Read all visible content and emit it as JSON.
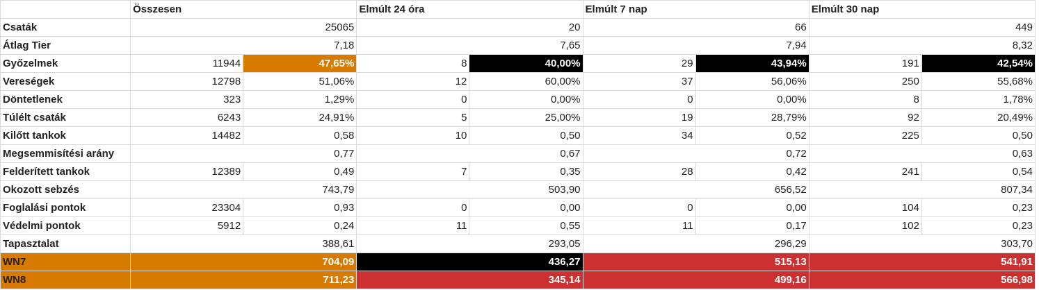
{
  "headers": [
    "Összesen",
    "Elmúlt 24 óra",
    "Elmúlt 7 nap",
    "Elmúlt 30 nap"
  ],
  "highlight_colors": {
    "orange": "#d97a00",
    "black": "#000000",
    "red": "#cd3030"
  },
  "rows": [
    {
      "label": "Csaták",
      "kind": "single",
      "cells": [
        {
          "value": "25065"
        },
        {
          "value": "20"
        },
        {
          "value": "66"
        },
        {
          "value": "449"
        }
      ]
    },
    {
      "label": "Átlag Tier",
      "kind": "single",
      "cells": [
        {
          "value": "7,18"
        },
        {
          "value": "7,65"
        },
        {
          "value": "7,94"
        },
        {
          "value": "8,32"
        }
      ]
    },
    {
      "label": "Győzelmek",
      "kind": "pair",
      "cells": [
        {
          "count": "11944",
          "value": "47,65%",
          "color": "orange"
        },
        {
          "count": "8",
          "value": "40,00%",
          "color": "black"
        },
        {
          "count": "29",
          "value": "43,94%",
          "color": "black"
        },
        {
          "count": "191",
          "value": "42,54%",
          "color": "black"
        }
      ]
    },
    {
      "label": "Vereségek",
      "kind": "pair",
      "cells": [
        {
          "count": "12798",
          "value": "51,06%"
        },
        {
          "count": "12",
          "value": "60,00%"
        },
        {
          "count": "37",
          "value": "56,06%"
        },
        {
          "count": "250",
          "value": "55,68%"
        }
      ]
    },
    {
      "label": "Döntetlenek",
      "kind": "pair",
      "cells": [
        {
          "count": "323",
          "value": "1,29%"
        },
        {
          "count": "0",
          "value": "0,00%"
        },
        {
          "count": "0",
          "value": "0,00%"
        },
        {
          "count": "8",
          "value": "1,78%"
        }
      ]
    },
    {
      "label": "Túlélt csaták",
      "kind": "pair",
      "cells": [
        {
          "count": "6243",
          "value": "24,91%"
        },
        {
          "count": "5",
          "value": "25,00%"
        },
        {
          "count": "19",
          "value": "28,79%"
        },
        {
          "count": "92",
          "value": "20,49%"
        }
      ]
    },
    {
      "label": "Kilőtt tankok",
      "kind": "pair",
      "cells": [
        {
          "count": "14482",
          "value": "0,58"
        },
        {
          "count": "10",
          "value": "0,50"
        },
        {
          "count": "34",
          "value": "0,52"
        },
        {
          "count": "225",
          "value": "0,50"
        }
      ]
    },
    {
      "label": "Megsemmisítési arány",
      "kind": "single",
      "cells": [
        {
          "value": "0,77"
        },
        {
          "value": "0,67"
        },
        {
          "value": "0,72"
        },
        {
          "value": "0,63"
        }
      ]
    },
    {
      "label": "Felderített tankok",
      "kind": "pair",
      "cells": [
        {
          "count": "12389",
          "value": "0,49"
        },
        {
          "count": "7",
          "value": "0,35"
        },
        {
          "count": "28",
          "value": "0,42"
        },
        {
          "count": "241",
          "value": "0,54"
        }
      ]
    },
    {
      "label": "Okozott sebzés",
      "kind": "single",
      "cells": [
        {
          "value": "743,79"
        },
        {
          "value": "503,90"
        },
        {
          "value": "656,52"
        },
        {
          "value": "807,34"
        }
      ]
    },
    {
      "label": "Foglalási pontok",
      "kind": "pair",
      "cells": [
        {
          "count": "23304",
          "value": "0,93"
        },
        {
          "count": "0",
          "value": "0,00"
        },
        {
          "count": "0",
          "value": "0,00"
        },
        {
          "count": "104",
          "value": "0,23"
        }
      ]
    },
    {
      "label": "Védelmi pontok",
      "kind": "pair",
      "cells": [
        {
          "count": "5912",
          "value": "0,24"
        },
        {
          "count": "11",
          "value": "0,55"
        },
        {
          "count": "11",
          "value": "0,17"
        },
        {
          "count": "102",
          "value": "0,23"
        }
      ]
    },
    {
      "label": "Tapasztalat",
      "kind": "single",
      "cells": [
        {
          "value": "388,61"
        },
        {
          "value": "293,05"
        },
        {
          "value": "296,29"
        },
        {
          "value": "303,70"
        }
      ]
    },
    {
      "label": "WN7",
      "kind": "single",
      "full_color": true,
      "cells": [
        {
          "value": "704,09",
          "color": "orange"
        },
        {
          "value": "436,27",
          "color": "black"
        },
        {
          "value": "515,13",
          "color": "red"
        },
        {
          "value": "541,91",
          "color": "red"
        }
      ]
    },
    {
      "label": "WN8",
      "kind": "single",
      "full_color": true,
      "cells": [
        {
          "value": "711,23",
          "color": "orange"
        },
        {
          "value": "345,14",
          "color": "red"
        },
        {
          "value": "499,16",
          "color": "red"
        },
        {
          "value": "566,98",
          "color": "red"
        }
      ]
    }
  ]
}
